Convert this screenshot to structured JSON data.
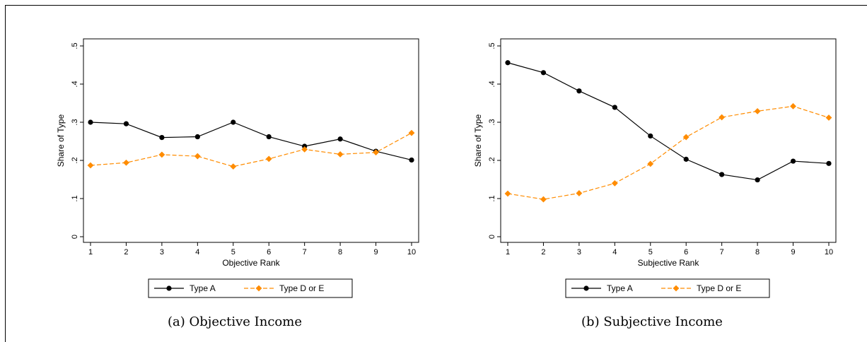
{
  "chart_data": [
    {
      "type": "line",
      "xlabel": "Objective Rank",
      "ylabel": "Share of Type",
      "x": [
        1,
        2,
        3,
        4,
        5,
        6,
        7,
        8,
        9,
        10
      ],
      "xticks": [
        "1",
        "2",
        "3",
        "4",
        "5",
        "6",
        "7",
        "8",
        "9",
        "10"
      ],
      "ylim": [
        0,
        0.5
      ],
      "yticks": [
        "0",
        ".1",
        ".2",
        ".3",
        ".4",
        ".5"
      ],
      "grid": false,
      "legend_position": "bottom",
      "caption": "(a) Objective Income",
      "series": [
        {
          "name": "Type A",
          "color": "#000000",
          "marker": "circle",
          "dash": "solid",
          "values": [
            0.3,
            0.296,
            0.26,
            0.262,
            0.3,
            0.262,
            0.237,
            0.256,
            0.224,
            0.201
          ]
        },
        {
          "name": "Type D or E",
          "color": "#ff8c00",
          "marker": "diamond",
          "dash": "dashed",
          "values": [
            0.187,
            0.194,
            0.215,
            0.211,
            0.184,
            0.204,
            0.229,
            0.216,
            0.221,
            0.272
          ]
        }
      ]
    },
    {
      "type": "line",
      "xlabel": "Subjective Rank",
      "ylabel": "Share of Type",
      "x": [
        1,
        2,
        3,
        4,
        5,
        6,
        7,
        8,
        9,
        10
      ],
      "xticks": [
        "1",
        "2",
        "3",
        "4",
        "5",
        "6",
        "7",
        "8",
        "9",
        "10"
      ],
      "ylim": [
        0,
        0.5
      ],
      "yticks": [
        "0",
        ".1",
        ".2",
        ".3",
        ".4",
        ".5"
      ],
      "grid": false,
      "legend_position": "bottom",
      "caption": "(b) Subjective Income",
      "series": [
        {
          "name": "Type A",
          "color": "#000000",
          "marker": "circle",
          "dash": "solid",
          "values": [
            0.456,
            0.43,
            0.382,
            0.339,
            0.264,
            0.203,
            0.163,
            0.149,
            0.198,
            0.192
          ]
        },
        {
          "name": "Type D or E",
          "color": "#ff8c00",
          "marker": "diamond",
          "dash": "dashed",
          "values": [
            0.113,
            0.098,
            0.114,
            0.14,
            0.191,
            0.261,
            0.313,
            0.329,
            0.342,
            0.312
          ]
        }
      ]
    }
  ]
}
